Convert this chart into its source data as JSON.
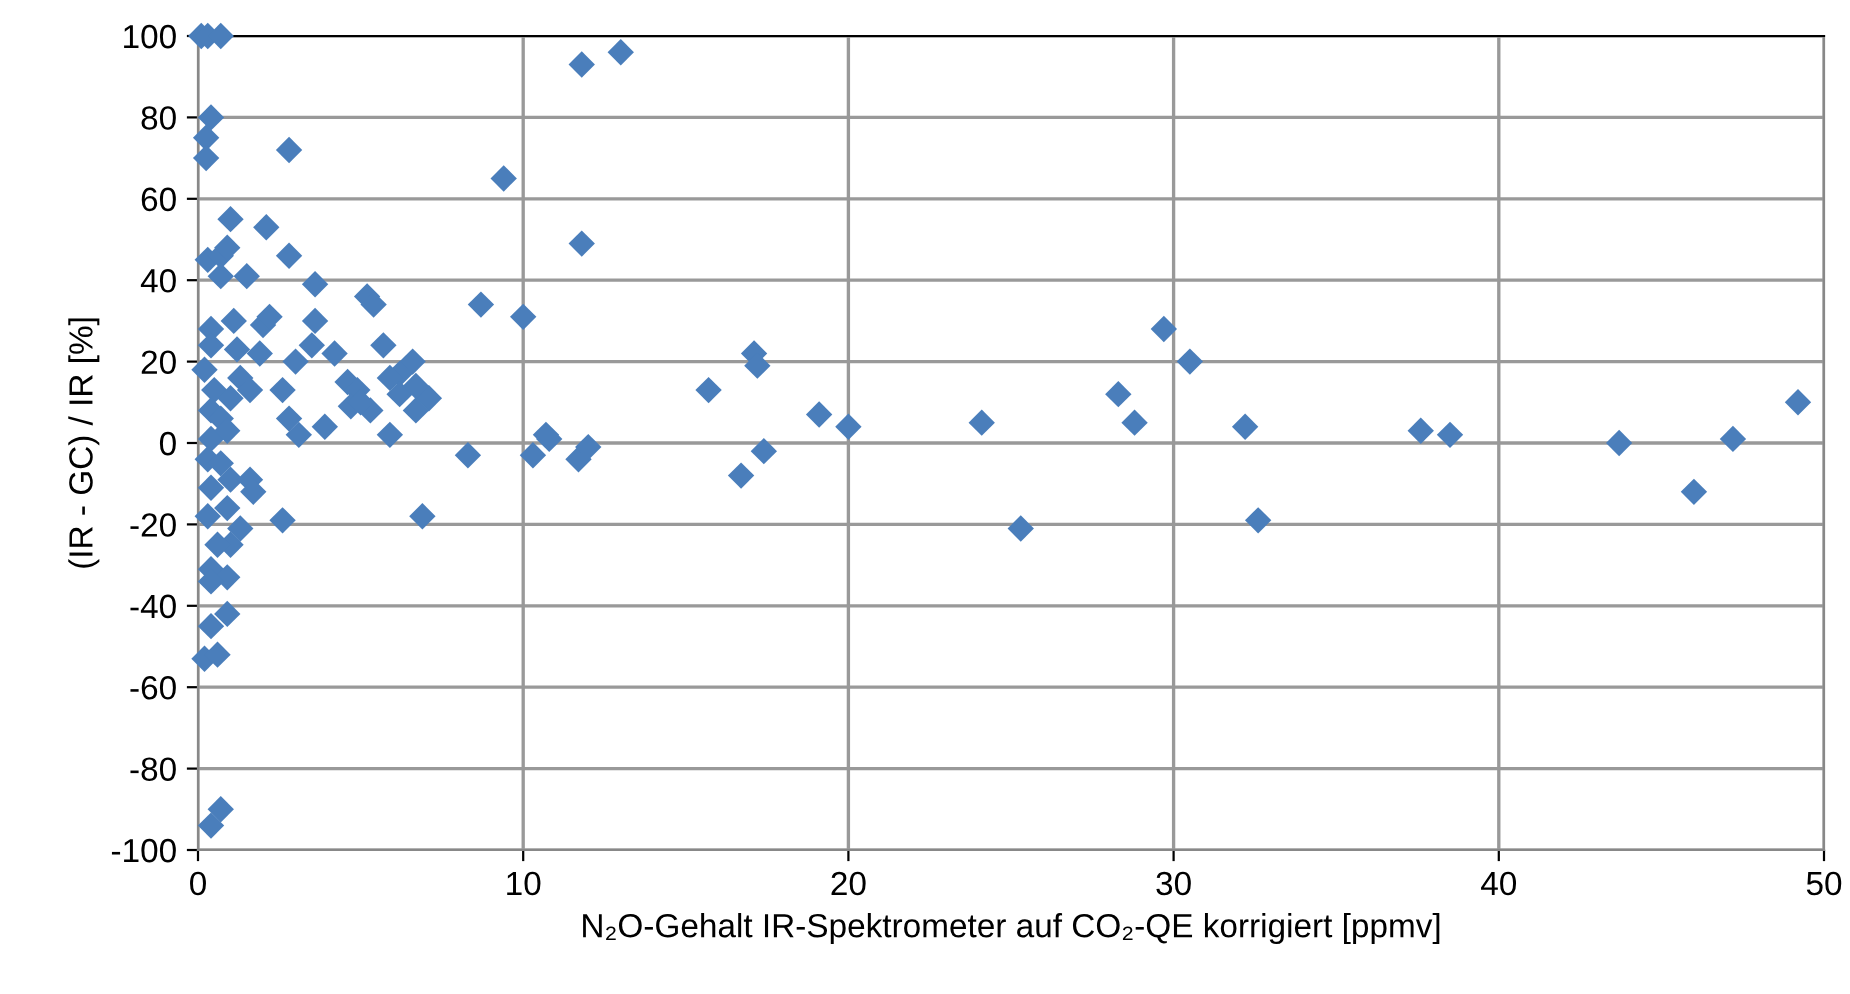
{
  "chart_data": {
    "type": "scatter",
    "xlabel": "N₂O-Gehalt IR-Spektrometer auf CO₂-QE korrigiert [ppmv]",
    "ylabel": "(IR - GC) / IR [%]",
    "xlim": [
      0,
      50
    ],
    "xticks": [
      0,
      10,
      20,
      30,
      40,
      50
    ],
    "ylim": [
      -100,
      100
    ],
    "yticks": [
      -100,
      -80,
      -60,
      -40,
      -20,
      0,
      20,
      40,
      60,
      80,
      100
    ],
    "grid": true,
    "marker": "diamond",
    "series": [
      {
        "color": "#4a7ebb",
        "x": [
          0.1,
          0.3,
          0.7,
          0.4,
          0.25,
          0.25,
          2.8,
          9.4,
          11.8,
          13.0,
          11.8,
          1,
          2.1,
          0.3,
          0.7,
          0.9,
          1.5,
          0.7,
          2.8,
          3.6,
          5.2,
          5.4,
          8.7,
          10,
          0.4,
          1.1,
          2,
          2.2,
          3.6,
          3.5,
          1.9,
          4.2,
          5.7,
          6.6,
          3,
          0.4,
          1.2,
          6.2,
          5.9,
          6.2,
          7.1,
          6.7,
          6.7,
          4.6,
          4.9,
          4.7,
          5.3,
          5,
          2.6,
          2.8,
          3.1,
          3.9,
          5.9,
          0.2,
          0.5,
          0.4,
          0.7,
          1,
          1.3,
          1.6,
          0.4,
          0.9,
          0.3,
          0.7,
          1,
          1.6,
          1.7,
          0.4,
          0.9,
          0.3,
          2.6,
          1.3,
          1,
          0.6,
          0.4,
          0.9,
          0.4,
          0.9,
          0.4,
          0.2,
          0.6,
          0.7,
          0.4,
          8.3,
          6.9,
          10.3,
          10.7,
          10.8,
          11.7,
          12,
          15.7,
          17.1,
          17.2,
          16.7,
          17.4,
          19.1,
          20,
          24.1,
          25.3,
          28.3,
          28.8,
          29.7,
          30.5,
          32.2,
          32.6,
          37.6,
          38.5,
          43.7,
          46,
          47.2,
          49.2
        ],
        "values": [
          100,
          100,
          100,
          80,
          75,
          70,
          72,
          65,
          93,
          96,
          49,
          55,
          53,
          45,
          46,
          48,
          41,
          41,
          46,
          39,
          36,
          34,
          34,
          31,
          28,
          30,
          29,
          31,
          30,
          24,
          22,
          22,
          24,
          20,
          20,
          24,
          23,
          17,
          16,
          12,
          11,
          8,
          14,
          15,
          13,
          9,
          8,
          10,
          13,
          6,
          2,
          4,
          2,
          18,
          13,
          8,
          6,
          11,
          16,
          13,
          1,
          3,
          -4,
          -5,
          -9,
          -9,
          -12,
          -11,
          -16,
          -18,
          -19,
          -21,
          -25,
          -25,
          -31,
          -33,
          -34,
          -42,
          -45,
          -53,
          -52,
          -90,
          -94,
          -3,
          -18,
          -3,
          2,
          1,
          -4,
          -1,
          13,
          22,
          19,
          -8,
          -2,
          7,
          4,
          5,
          -21,
          12,
          5,
          28,
          20,
          4,
          -19,
          3,
          2,
          0,
          -12,
          1,
          10
        ]
      }
    ]
  }
}
